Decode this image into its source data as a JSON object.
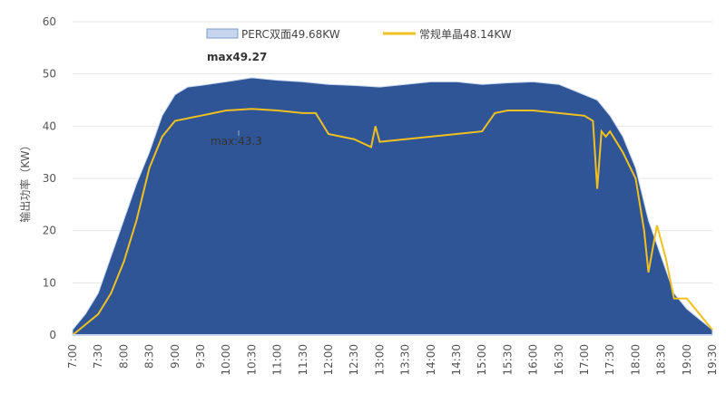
{
  "chart_data": {
    "type": "area",
    "title": "",
    "xlabel": "",
    "ylabel": "输出功率（KW）",
    "ylim": [
      0,
      60
    ],
    "yticks": [
      0,
      10,
      20,
      30,
      40,
      50,
      60
    ],
    "xticks": [
      "7:00",
      "7:30",
      "8:00",
      "8:30",
      "9:00",
      "9:30",
      "10:00",
      "10:30",
      "11:00",
      "11:30",
      "12:00",
      "12:30",
      "13:00",
      "13:30",
      "14:00",
      "14:30",
      "15:00",
      "15:30",
      "16:00",
      "16:30",
      "17:00",
      "17:30",
      "18:00",
      "18:30",
      "19:00",
      "19:30"
    ],
    "grid": true,
    "legend_position": "top",
    "series": [
      {
        "name": "PERC双面49.68KW",
        "type": "area",
        "color": "#2f5597",
        "legend_color": "#c5d6ee",
        "x": [
          "7:00",
          "7:15",
          "7:30",
          "7:45",
          "8:00",
          "8:15",
          "8:30",
          "8:45",
          "9:00",
          "9:15",
          "9:30",
          "10:00",
          "10:30",
          "11:00",
          "11:30",
          "12:00",
          "12:30",
          "13:00",
          "13:30",
          "14:00",
          "14:30",
          "15:00",
          "15:30",
          "16:00",
          "16:30",
          "17:00",
          "17:15",
          "17:30",
          "17:45",
          "18:00",
          "18:15",
          "18:30",
          "18:45",
          "19:00",
          "19:15",
          "19:30"
        ],
        "y": [
          1,
          4,
          8,
          15,
          22,
          29,
          35,
          42,
          46,
          47.5,
          47.8,
          48.5,
          49.27,
          48.8,
          48.5,
          48,
          47.8,
          47.5,
          48,
          48.5,
          48.5,
          48,
          48.3,
          48.5,
          48,
          46,
          45,
          42,
          38,
          32,
          22,
          15,
          8,
          5,
          3,
          1
        ]
      },
      {
        "name": "常规单晶48.14KW",
        "type": "line",
        "color": "#f0c020",
        "x": [
          "7:00",
          "7:15",
          "7:30",
          "7:45",
          "8:00",
          "8:15",
          "8:30",
          "8:45",
          "9:00",
          "9:30",
          "10:00",
          "10:30",
          "11:00",
          "11:30",
          "11:45",
          "12:00",
          "12:30",
          "12:50",
          "12:55",
          "13:00",
          "13:30",
          "14:00",
          "14:30",
          "15:00",
          "15:15",
          "15:30",
          "16:00",
          "16:30",
          "17:00",
          "17:10",
          "17:15",
          "17:20",
          "17:25",
          "17:30",
          "17:45",
          "18:00",
          "18:10",
          "18:15",
          "18:25",
          "18:35",
          "18:45",
          "19:00",
          "19:15",
          "19:30"
        ],
        "y": [
          0,
          2,
          4,
          8,
          14,
          22,
          32,
          38,
          41,
          42,
          43,
          43.3,
          43,
          42.5,
          42.5,
          38.5,
          37.5,
          36,
          40,
          37,
          37.5,
          38,
          38.5,
          39,
          42.5,
          43,
          43,
          42.5,
          42,
          41,
          28,
          39,
          38,
          39,
          35,
          30,
          20,
          12,
          21,
          15,
          7,
          7,
          4,
          1
        ]
      }
    ],
    "annotations": [
      {
        "text": "max49.27",
        "x": "9:30",
        "y": 53
      },
      {
        "text": "max:43.3",
        "x": "9:35",
        "y": 37
      }
    ]
  }
}
